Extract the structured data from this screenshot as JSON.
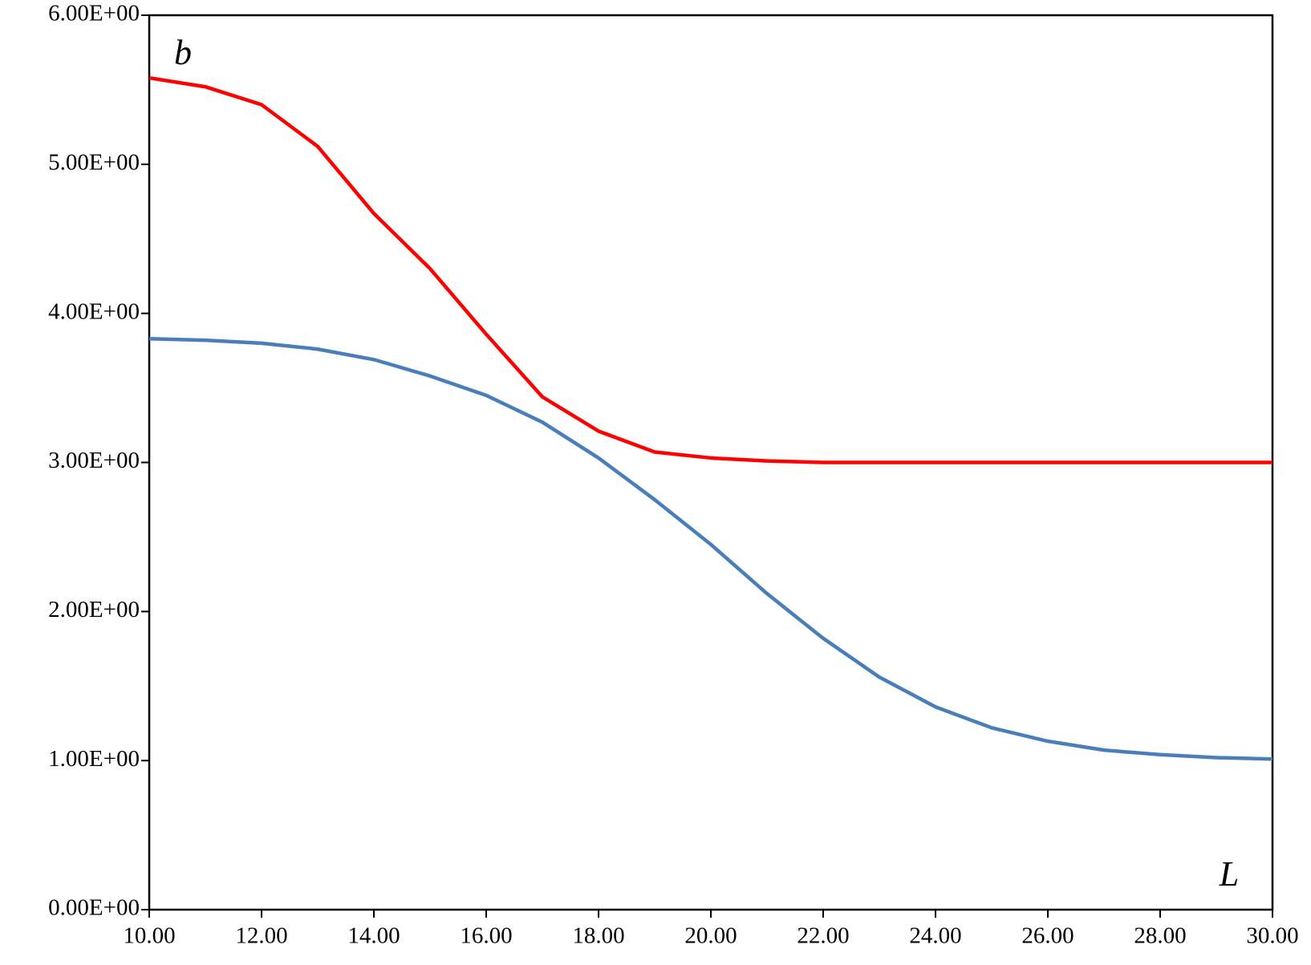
{
  "chart_data": {
    "type": "line",
    "y_label": "b",
    "x_label": "L",
    "x": [
      10,
      11,
      12,
      13,
      14,
      15,
      16,
      17,
      18,
      19,
      20,
      21,
      22,
      23,
      24,
      25,
      26,
      27,
      28,
      29,
      30
    ],
    "series": [
      {
        "color": "#ff0000",
        "values": [
          5.58,
          5.52,
          5.4,
          5.12,
          4.67,
          4.3,
          3.86,
          3.44,
          3.21,
          3.07,
          3.03,
          3.01,
          3.0,
          3.0,
          3.0,
          3.0,
          3.0,
          3.0,
          3.0,
          3.0,
          3.0
        ]
      },
      {
        "color": "#4a7ebb",
        "values": [
          3.83,
          3.82,
          3.8,
          3.76,
          3.69,
          3.58,
          3.45,
          3.27,
          3.03,
          2.75,
          2.45,
          2.12,
          1.82,
          1.56,
          1.36,
          1.22,
          1.13,
          1.07,
          1.04,
          1.02,
          1.01
        ]
      }
    ],
    "xlim": [
      10,
      30
    ],
    "xticks": [
      {
        "value": 10,
        "label": "10.00"
      },
      {
        "value": 12,
        "label": "12.00"
      },
      {
        "value": 14,
        "label": "14.00"
      },
      {
        "value": 16,
        "label": "16.00"
      },
      {
        "value": 18,
        "label": "18.00"
      },
      {
        "value": 20,
        "label": "20.00"
      },
      {
        "value": 22,
        "label": "22.00"
      },
      {
        "value": 24,
        "label": "24.00"
      },
      {
        "value": 26,
        "label": "26.00"
      },
      {
        "value": 28,
        "label": "28.00"
      },
      {
        "value": 30,
        "label": "30.00"
      }
    ],
    "ylim": [
      0,
      6
    ],
    "yticks": [
      {
        "value": 0,
        "label": "0.00E+00"
      },
      {
        "value": 1,
        "label": "1.00E+00"
      },
      {
        "value": 2,
        "label": "2.00E+00"
      },
      {
        "value": 3,
        "label": "3.00E+00"
      },
      {
        "value": 4,
        "label": "4.00E+00"
      },
      {
        "value": 5,
        "label": "5.00E+00"
      },
      {
        "value": 6,
        "label": "6.00E+00"
      }
    ],
    "grid": false
  }
}
